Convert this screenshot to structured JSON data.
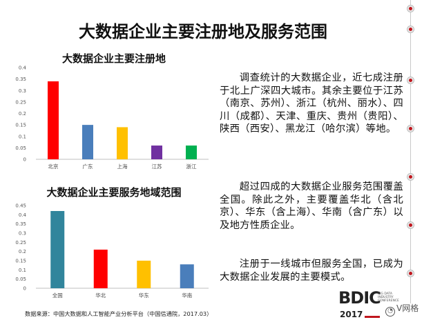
{
  "title": "大数据企业主要注册地及服务范围",
  "paragraphs": [
    "调查统计的大数据企业，近七成注册于北上广深四大城市。其余主要位于江苏（南京、苏州）、浙江（杭州、丽水）、四川（成都）、天津、重庆、贵州（贵阳）、陕西（西安）、黑龙江（哈尔滨）等地。",
    "超过四成的大数据企业服务范围覆盖全国。除此之外，主要覆盖华北（含北京）、华东（含上海）、华南（含广东）以及地方性质企业。",
    "注册于一线城市但服务全国，已成为大数据企业发展的主要模式。"
  ],
  "source": "数据来源：中国大数据和人工智能产业分析平台（中国信通院，2017.03）",
  "logo": {
    "text": "BDIC",
    "subtitle": "BIG DATA INDUSTRY CONFERENCE",
    "year": "2017"
  },
  "watermark": {
    "icon": "wechat-icon",
    "text": "V网格"
  },
  "colors": {
    "accent": "#c0161d"
  },
  "chart_data": [
    {
      "type": "bar",
      "title": "大数据企业主要注册地",
      "categories": [
        "北京",
        "广东",
        "上海",
        "江苏",
        "浙江"
      ],
      "values": [
        0.34,
        0.15,
        0.14,
        0.06,
        0.06
      ],
      "colors": [
        "#ff0000",
        "#4a7ebb",
        "#ffc000",
        "#7030a0",
        "#00b050"
      ],
      "ylim": [
        0,
        0.4
      ],
      "yticks": [
        "0",
        "0.05",
        "0.1",
        "0.15",
        "0.2",
        "0.25",
        "0.3",
        "0.35",
        "0.4"
      ],
      "grid": false,
      "legend": "none",
      "xlabel": "",
      "ylabel": ""
    },
    {
      "type": "bar",
      "title": "大数据企业主要服务地域范围",
      "categories": [
        "全国",
        "华北",
        "华东",
        "华南"
      ],
      "values": [
        0.42,
        0.21,
        0.15,
        0.13
      ],
      "colors": [
        "#31859c",
        "#ff0000",
        "#ffc000",
        "#4a7ebb"
      ],
      "ylim": [
        0,
        0.45
      ],
      "yticks": [
        "0",
        "0.05",
        "0.1",
        "0.15",
        "0.2",
        "0.25",
        "0.3",
        "0.35",
        "0.4",
        "0.45"
      ],
      "grid": false,
      "legend": "none",
      "xlabel": "",
      "ylabel": ""
    }
  ]
}
